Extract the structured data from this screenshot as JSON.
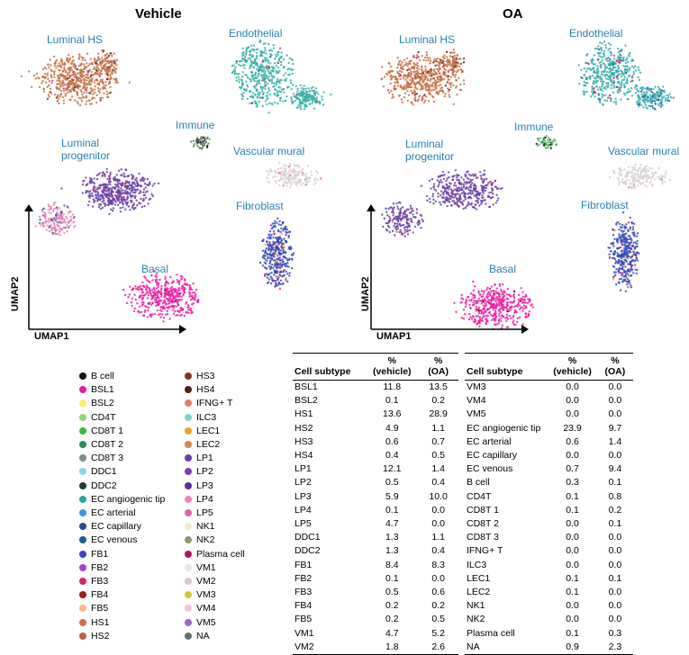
{
  "panels": {
    "vehicle": {
      "title": "Vehicle",
      "labels": {
        "luminal_hs": "Luminal HS",
        "endothelial": "Endothelial",
        "immune": "Immune",
        "luminal_progenitor": [
          "Luminal",
          "progenitor"
        ],
        "vascular_mural": "Vascular mural",
        "fibroblast": "Fibroblast",
        "basal": "Basal"
      }
    },
    "oa": {
      "title": "OA",
      "labels": {
        "luminal_hs": "Luminal HS",
        "endothelial": "Endothelial",
        "immune": "Immune",
        "luminal_progenitor": [
          "Luminal",
          "progenitor"
        ],
        "vascular_mural": "Vascular mural",
        "fibroblast": "Fibroblast",
        "basal": "Basal"
      }
    },
    "axes": {
      "x": "UMAP1",
      "y": "UMAP2"
    }
  },
  "colors": {
    "luminal_hs": "#c8734a",
    "endothelial": "#38b2a8",
    "lp": "#6b3fa8",
    "fibroblast": "#3a49b8",
    "basal": "#f01fa6",
    "vascular": "#d8d0d8",
    "immune": "#5dbb5d",
    "label": "#2a7fb4"
  },
  "legend": {
    "col1": [
      {
        "label": "B cell",
        "color": "#111111"
      },
      {
        "label": "BSL1",
        "color": "#e81aa0"
      },
      {
        "label": "BSL2",
        "color": "#f4f06a"
      },
      {
        "label": "CD4T",
        "color": "#8ed67a"
      },
      {
        "label": "CD8T 1",
        "color": "#3cba3c"
      },
      {
        "label": "CD8T 2",
        "color": "#2e8a58"
      },
      {
        "label": "CD8T 3",
        "color": "#7f8c8d"
      },
      {
        "label": "DDC1",
        "color": "#8fd3e8"
      },
      {
        "label": "DDC2",
        "color": "#1e3b2c"
      },
      {
        "label": "EC angiogenic tip",
        "color": "#2aa79b"
      },
      {
        "label": "EC arterial",
        "color": "#3a9bd8"
      },
      {
        "label": "EC capillary",
        "color": "#2f4a8a"
      },
      {
        "label": "EC venous",
        "color": "#1d5e8c"
      },
      {
        "label": "FB1",
        "color": "#3a49b8"
      },
      {
        "label": "FB2",
        "color": "#a340d6"
      },
      {
        "label": "FB3",
        "color": "#e0245a"
      },
      {
        "label": "FB4",
        "color": "#9b1c1c"
      },
      {
        "label": "FB5",
        "color": "#f5b88a"
      },
      {
        "label": "HS1",
        "color": "#c8734a"
      },
      {
        "label": "HS2",
        "color": "#b5653f"
      }
    ],
    "col2": [
      {
        "label": "HS3",
        "color": "#7a3a1e"
      },
      {
        "label": "HS4",
        "color": "#4a2412"
      },
      {
        "label": "IFNG+ T",
        "color": "#f07a6a"
      },
      {
        "label": "ILC3",
        "color": "#7fd6c8"
      },
      {
        "label": "LEC1",
        "color": "#f0a030"
      },
      {
        "label": "LEC2",
        "color": "#d88850"
      },
      {
        "label": "LP1",
        "color": "#6b3fa8"
      },
      {
        "label": "LP2",
        "color": "#7b3fb8"
      },
      {
        "label": "LP3",
        "color": "#5b2f98"
      },
      {
        "label": "LP4",
        "color": "#e888b8"
      },
      {
        "label": "LP5",
        "color": "#d56aa5"
      },
      {
        "label": "NK1",
        "color": "#e8f0c8"
      },
      {
        "label": "NK2",
        "color": "#8a9a6a"
      },
      {
        "label": "Plasma cell",
        "color": "#a81a6a"
      },
      {
        "label": "VM1",
        "color": "#e8e8e8"
      },
      {
        "label": "VM2",
        "color": "#d8c8d0"
      },
      {
        "label": "VM3",
        "color": "#c8c828"
      },
      {
        "label": "VM4",
        "color": "#f0c8d8"
      },
      {
        "label": "VM5",
        "color": "#9a6ab8"
      },
      {
        "label": "NA",
        "color": "#6e6e6e"
      }
    ]
  },
  "table1": {
    "headers": [
      "Cell subtype",
      "% (vehicle)",
      "% (OA)"
    ],
    "header_lines": [
      [
        "",
        "Cell subtype"
      ],
      [
        "%",
        "(vehicle)"
      ],
      [
        "%",
        "(OA)"
      ]
    ],
    "rows": [
      [
        "BSL1",
        "11.8",
        "13.5"
      ],
      [
        "BSL2",
        "0.1",
        "0.2"
      ],
      [
        "HS1",
        "13.6",
        "28.9"
      ],
      [
        "HS2",
        "4.9",
        "1.1"
      ],
      [
        "HS3",
        "0.6",
        "0.7"
      ],
      [
        "HS4",
        "0.4",
        "0.5"
      ],
      [
        "LP1",
        "12.1",
        "1.4"
      ],
      [
        "LP2",
        "0.5",
        "0.4"
      ],
      [
        "LP3",
        "5.9",
        "10.0"
      ],
      [
        "LP4",
        "0.1",
        "0.0"
      ],
      [
        "LP5",
        "4.7",
        "0.0"
      ],
      [
        "DDC1",
        "1.3",
        "1.1"
      ],
      [
        "DDC2",
        "1.3",
        "0.4"
      ],
      [
        "FB1",
        "8.4",
        "8.3"
      ],
      [
        "FB2",
        "0.1",
        "0.0"
      ],
      [
        "FB3",
        "0.5",
        "0.6"
      ],
      [
        "FB4",
        "0.2",
        "0.2"
      ],
      [
        "FB5",
        "0.2",
        "0.5"
      ],
      [
        "VM1",
        "4.7",
        "5.2"
      ],
      [
        "VM2",
        "1.8",
        "2.6"
      ]
    ]
  },
  "table2": {
    "headers": [
      "Cell subtype",
      "% (vehicle)",
      "% (OA)"
    ],
    "header_lines": [
      [
        "",
        "Cell subtype"
      ],
      [
        "%",
        "(vehicle)"
      ],
      [
        "%",
        "(OA)"
      ]
    ],
    "rows": [
      [
        "VM3",
        "0.0",
        "0.0"
      ],
      [
        "VM4",
        "0.0",
        "0.0"
      ],
      [
        "VM5",
        "0.0",
        "0.0"
      ],
      [
        "EC angiogenic tip",
        "23.9",
        "9.7"
      ],
      [
        "EC arterial",
        "0.6",
        "1.4"
      ],
      [
        "EC capillary",
        "0.0",
        "0.0"
      ],
      [
        "EC venous",
        "0.7",
        "9.4"
      ],
      [
        "B cell",
        "0.3",
        "0.1"
      ],
      [
        "CD4T",
        "0.1",
        "0.8"
      ],
      [
        "CD8T 1",
        "0.1",
        "0.2"
      ],
      [
        "CD8T 2",
        "0.0",
        "0.1"
      ],
      [
        "CD8T 3",
        "0.0",
        "0.0"
      ],
      [
        "IFNG+ T",
        "0.0",
        "0.0"
      ],
      [
        "ILC3",
        "0.0",
        "0.0"
      ],
      [
        "LEC1",
        "0.1",
        "0.1"
      ],
      [
        "LEC2",
        "0.1",
        "0.0"
      ],
      [
        "NK1",
        "0.0",
        "0.0"
      ],
      [
        "NK2",
        "0.0",
        "0.0"
      ],
      [
        "Plasma cell",
        "0.1",
        "0.3"
      ],
      [
        "NA",
        "0.9",
        "2.3"
      ]
    ]
  }
}
